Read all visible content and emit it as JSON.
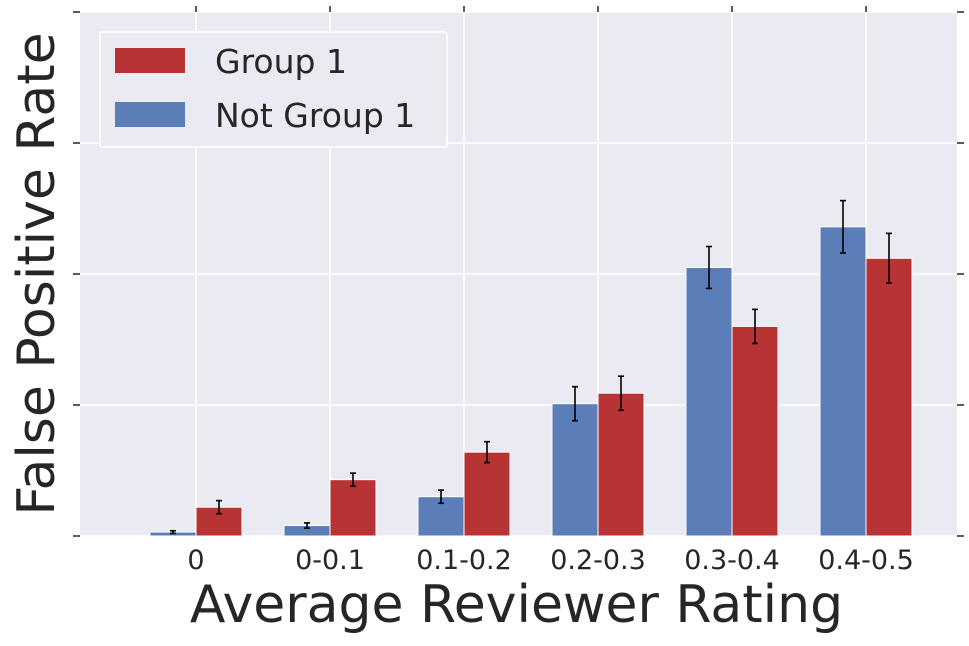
{
  "chart_data": {
    "type": "bar",
    "title": "",
    "xlabel": "Average Reviewer Rating",
    "ylabel": "False Positive Rate",
    "categories": [
      "0",
      "0-0.1",
      "0.1-0.2",
      "0.2-0.3",
      "0.3-0.4",
      "0.4-0.5"
    ],
    "ylim": [
      0,
      4
    ],
    "y_tick_values": [
      0,
      1,
      2,
      3,
      4
    ],
    "y_tick_labels_visible": false,
    "grid": true,
    "legend": "top-left",
    "series": [
      {
        "name": "Not Group 1",
        "color": "#5b7db8",
        "values": [
          0.03,
          0.08,
          0.3,
          1.01,
          2.05,
          2.36
        ],
        "err": [
          0.01,
          0.02,
          0.05,
          0.13,
          0.16,
          0.2
        ]
      },
      {
        "name": "Group 1",
        "color": "#b83434",
        "values": [
          0.22,
          0.43,
          0.64,
          1.09,
          1.6,
          2.12
        ],
        "err": [
          0.05,
          0.05,
          0.08,
          0.13,
          0.13,
          0.19
        ]
      }
    ],
    "legend_order": [
      "Group 1",
      "Not Group 1"
    ]
  },
  "colors": {
    "plot_background": "#eaeaf2",
    "grid": "#ffffff",
    "text": "#262626",
    "error_bar": "#000000"
  }
}
